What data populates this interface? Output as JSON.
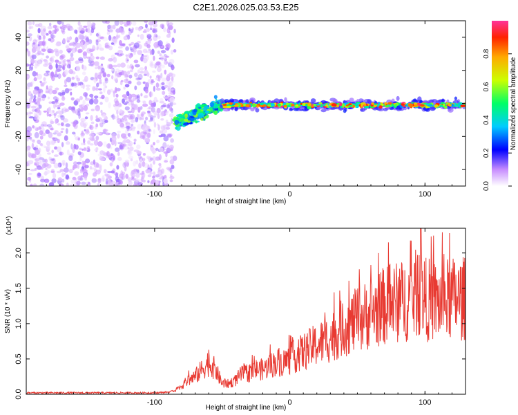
{
  "title": "C2E1.2026.025.03.53.E25",
  "chart_data": [
    {
      "type": "heatmap",
      "title": "C2E1.2026.025.03.53.E25",
      "xlabel": "Height of straight line (km)",
      "ylabel": "Frequency (Hz)",
      "xlim": [
        -195,
        130
      ],
      "ylim": [
        -50,
        50
      ],
      "xticks": [
        -100,
        0,
        100
      ],
      "yticks": [
        -40,
        -20,
        0,
        20,
        40
      ],
      "colorbar": {
        "label": "Normalized spectral amplitude",
        "range": [
          0,
          1
        ],
        "ticks": [
          "0.0",
          "0.2",
          "0.4",
          "0.6",
          "0.8"
        ]
      },
      "regions": [
        {
          "name": "noise",
          "x": [
            -195,
            -85
          ],
          "freq_range": [
            -50,
            50
          ],
          "amplitude": 0.08
        },
        {
          "name": "onset",
          "x": [
            -85,
            -50
          ],
          "freq_range": [
            -15,
            8
          ],
          "amplitude": 0.45
        },
        {
          "name": "signal",
          "x": [
            -50,
            130
          ],
          "freq_center": -1,
          "freq_width": 3,
          "amplitude": 0.85
        }
      ]
    },
    {
      "type": "line",
      "xlabel": "Height of straight line (km)",
      "ylabel": "SNR (10 * v/v)",
      "scale_label": "(x10⁴)",
      "xlim": [
        -195,
        130
      ],
      "ylim": [
        0,
        2.35
      ],
      "xticks": [
        -100,
        0,
        100
      ],
      "yticks": [
        "0.0",
        "0.5",
        "1.0",
        "1.5",
        "2.0"
      ],
      "series": [
        {
          "name": "SNR",
          "color": "#e83a32",
          "x": [
            -195,
            -180,
            -160,
            -140,
            -120,
            -100,
            -90,
            -85,
            -80,
            -75,
            -70,
            -65,
            -60,
            -55,
            -50,
            -45,
            -40,
            -35,
            -30,
            -25,
            -20,
            -15,
            -10,
            -5,
            0,
            10,
            20,
            30,
            40,
            50,
            60,
            70,
            80,
            90,
            97,
            100,
            110,
            120,
            130
          ],
          "y": [
            0.02,
            0.02,
            0.02,
            0.02,
            0.02,
            0.02,
            0.03,
            0.05,
            0.12,
            0.2,
            0.25,
            0.35,
            0.45,
            0.35,
            0.15,
            0.15,
            0.2,
            0.3,
            0.3,
            0.35,
            0.35,
            0.4,
            0.45,
            0.45,
            0.5,
            0.6,
            0.7,
            0.8,
            0.95,
            1.05,
            1.15,
            1.25,
            1.3,
            1.35,
            1.5,
            1.35,
            1.3,
            1.35,
            1.35
          ]
        }
      ]
    }
  ]
}
